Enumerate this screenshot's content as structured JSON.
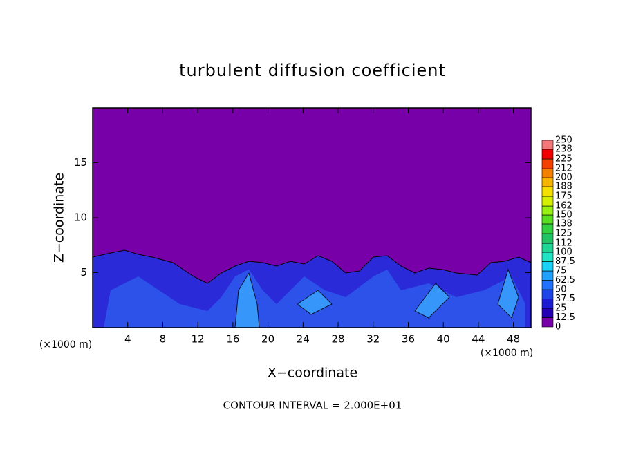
{
  "chart_data": {
    "type": "contour",
    "title": "turbulent diffusion coefficient",
    "x_label": "X−coordinate",
    "y_label": "Z−coordinate",
    "x_unit_labels": [
      "(×1000 m)",
      "(×1000 m)"
    ],
    "footnote": "CONTOUR INTERVAL = 2.000E+01",
    "xlim": [
      0,
      50
    ],
    "ylim": [
      0,
      20
    ],
    "xticks": [
      4,
      8,
      12,
      16,
      20,
      24,
      28,
      32,
      36,
      40,
      44,
      48
    ],
    "yticks": [
      5,
      10,
      15
    ],
    "colorbar": {
      "levels": [
        0,
        12.5,
        25,
        37.5,
        50,
        62.5,
        75,
        87.5,
        100,
        112,
        125,
        138,
        150,
        162,
        175,
        188,
        200,
        212,
        225,
        238,
        250
      ],
      "colors": [
        "#7800a8",
        "#2400b4",
        "#1c1cd4",
        "#1e44e8",
        "#2272ff",
        "#20a0ff",
        "#18d0f4",
        "#20e4c4",
        "#20d494",
        "#20c464",
        "#30d040",
        "#58e020",
        "#98f010",
        "#d4f000",
        "#f4e000",
        "#f4b400",
        "#f48000",
        "#f44000",
        "#f00000",
        "#f07878"
      ]
    }
  }
}
